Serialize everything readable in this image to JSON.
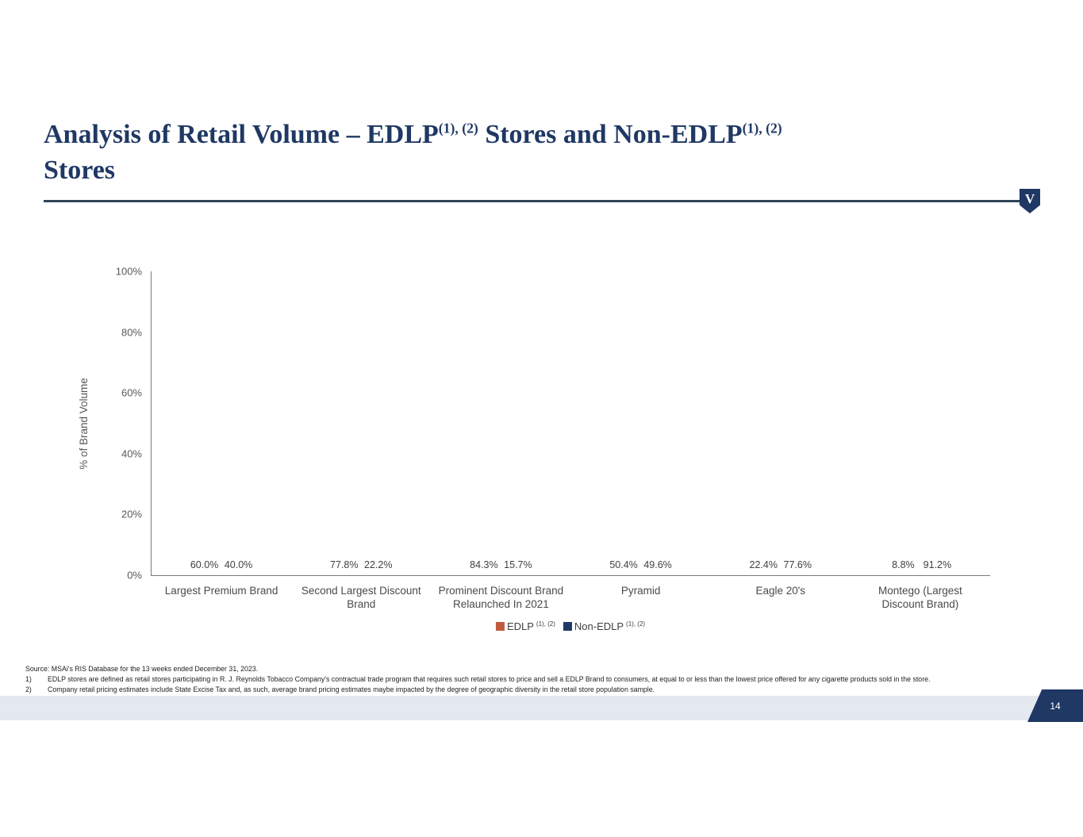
{
  "title": {
    "part1": "Analysis of Retail Volume – EDLP",
    "sup1": "(1), (2)",
    "part2": " Stores and Non-EDLP",
    "sup2": "(1), (2)",
    "part3": "Stores"
  },
  "logo": {
    "letter": "V"
  },
  "chart_data": {
    "type": "bar",
    "title": "",
    "xlabel": "",
    "ylabel": "% of Brand Volume",
    "ylim": [
      0,
      100
    ],
    "yticks": [
      "100%",
      "80%",
      "60%",
      "40%",
      "20%",
      "0%"
    ],
    "grid": false,
    "legend_position": "bottom",
    "categories": [
      "Largest Premium Brand",
      "Second Largest Discount\nBrand",
      "Prominent Discount Brand\nRelaunched In 2021",
      "Pyramid",
      "Eagle 20's",
      "Montego (Largest\nDiscount Brand)"
    ],
    "series": [
      {
        "name": "EDLP",
        "sup": "(1), (2)",
        "color": "#C05A3E",
        "values": [
          60.0,
          77.8,
          84.3,
          50.4,
          22.4,
          8.8
        ]
      },
      {
        "name": "Non-EDLP",
        "sup": "(1), (2)",
        "color": "#1F3864",
        "values": [
          40.0,
          22.2,
          15.7,
          49.6,
          77.6,
          91.2
        ]
      }
    ]
  },
  "footnotes": {
    "source": "Source: MSAi's RIS Database for the 13 weeks ended December 31, 2023.",
    "items": [
      {
        "num": "1)",
        "text": "EDLP stores are defined as retail stores participating in R. J. Reynolds Tobacco Company's contractual trade program that requires such retail stores to price and sell a EDLP Brand to consumers, at equal to or less than the lowest price offered for any cigarette products sold in the store."
      },
      {
        "num": "2)",
        "text": "Company retail pricing estimates include State Excise Tax and, as such, average brand pricing estimates maybe impacted by the degree of geographic diversity in the retail store population sample."
      }
    ]
  },
  "footer": {
    "page_number": "14"
  }
}
